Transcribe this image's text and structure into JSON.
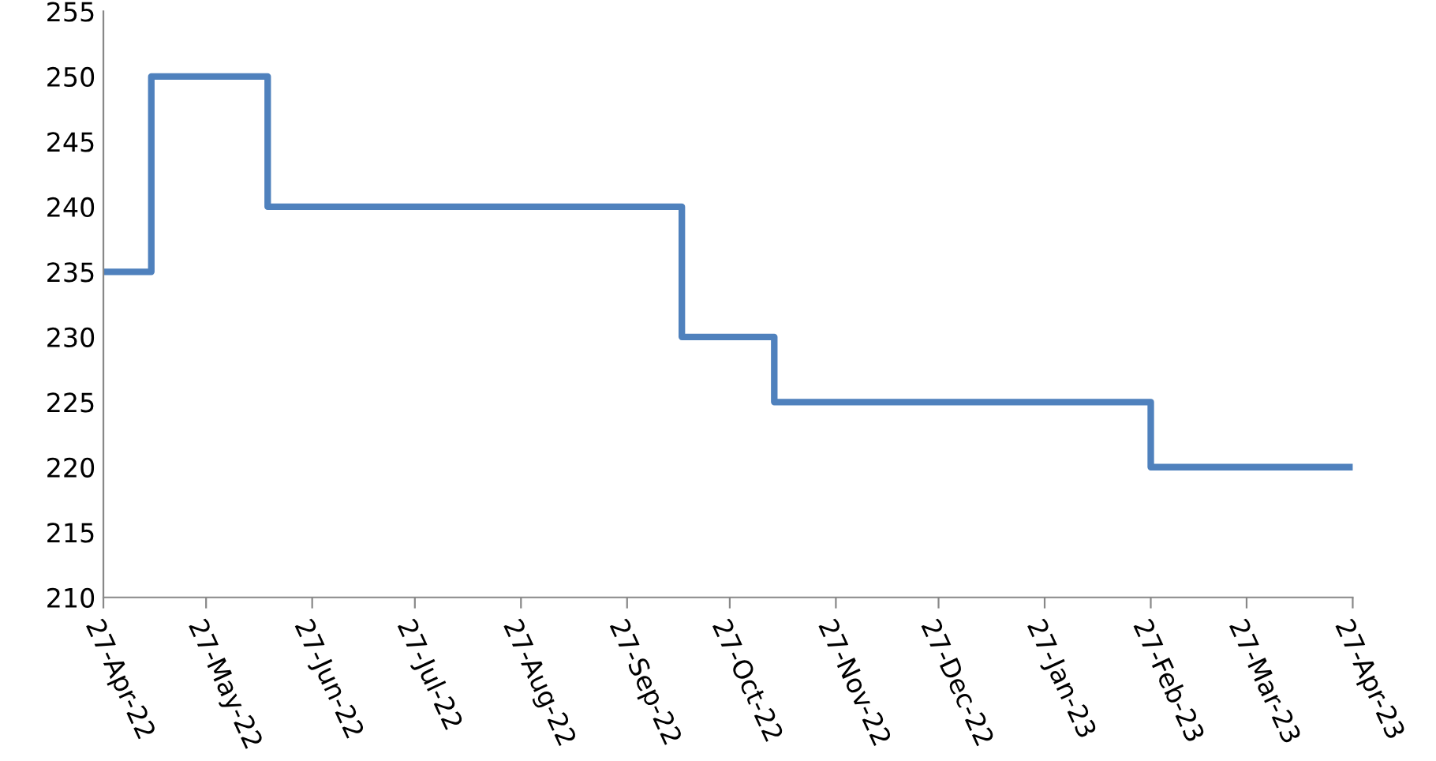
{
  "chart_data": {
    "type": "step",
    "x": [
      "2022-04-27",
      "2022-05-11",
      "2022-06-14",
      "2022-10-13",
      "2022-11-09",
      "2023-02-27",
      "2023-04-27"
    ],
    "series": [
      {
        "color": "#4f81bd",
        "values": [
          235,
          250,
          240,
          230,
          225,
          220,
          220
        ]
      }
    ],
    "xlim": [
      "2022-04-27",
      "2023-04-27"
    ],
    "xticks": [
      {
        "value": "2022-04-27",
        "label": "27-Apr-22"
      },
      {
        "value": "2022-05-27",
        "label": "27-May-22"
      },
      {
        "value": "2022-06-27",
        "label": "27-Jun-22"
      },
      {
        "value": "2022-07-27",
        "label": "27-Jul-22"
      },
      {
        "value": "2022-08-27",
        "label": "27-Aug-22"
      },
      {
        "value": "2022-09-27",
        "label": "27-Sep-22"
      },
      {
        "value": "2022-10-27",
        "label": "27-Oct-22"
      },
      {
        "value": "2022-11-27",
        "label": "27-Nov-22"
      },
      {
        "value": "2022-12-27",
        "label": "27-Dec-22"
      },
      {
        "value": "2023-01-27",
        "label": "27-Jan-23"
      },
      {
        "value": "2023-02-27",
        "label": "27-Feb-23"
      },
      {
        "value": "2023-03-27",
        "label": "27-Mar-23"
      },
      {
        "value": "2023-04-27",
        "label": "27-Apr-23"
      }
    ],
    "ylim": [
      210,
      255
    ],
    "yticks": [
      210,
      215,
      220,
      225,
      230,
      235,
      240,
      245,
      250,
      255
    ],
    "grid": false,
    "legend": false,
    "marker": "none",
    "line_style": "solid"
  }
}
